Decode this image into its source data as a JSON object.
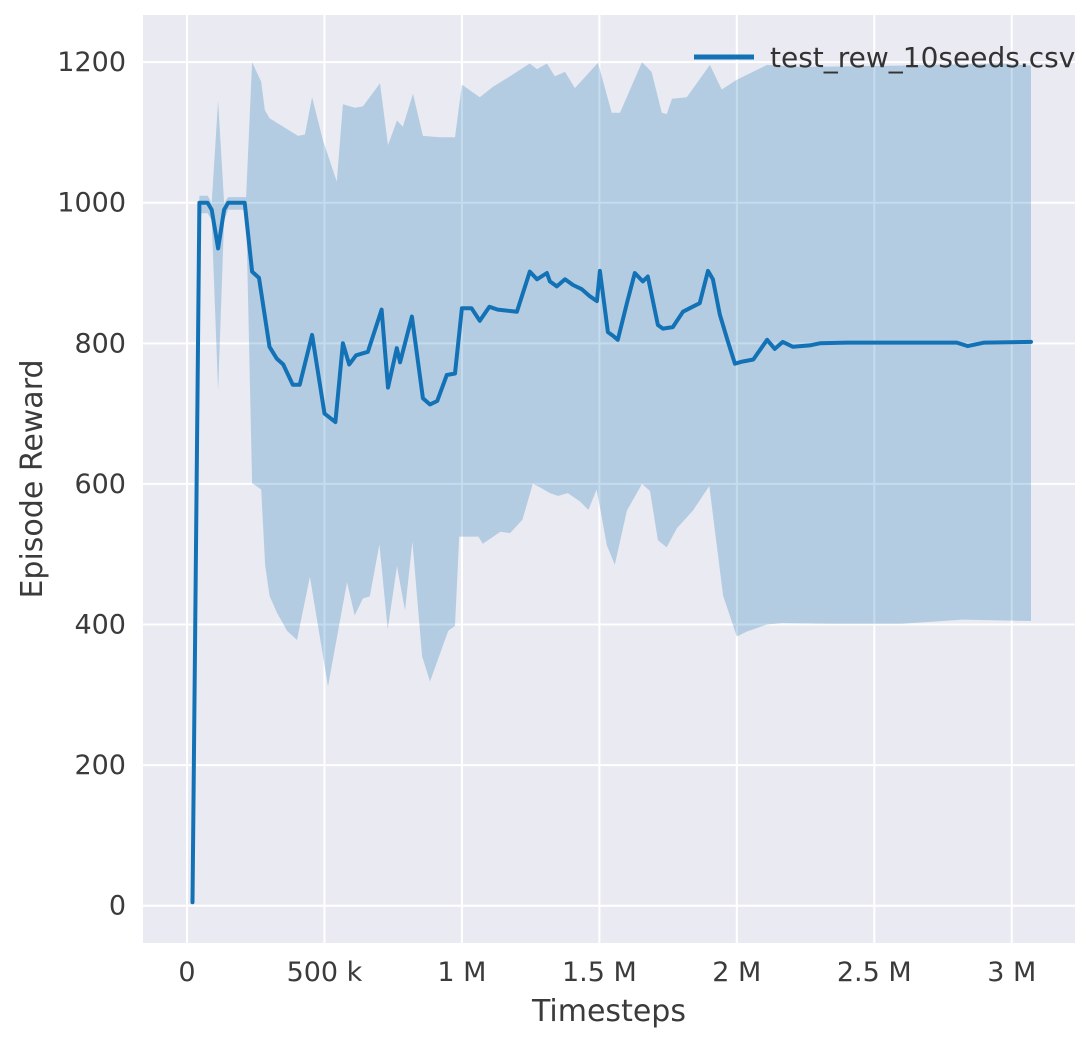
{
  "chart_data": {
    "type": "line",
    "title": "",
    "xlabel": "Timesteps",
    "ylabel": "Episode Reward",
    "grid": true,
    "legend": {
      "position": "upper-right",
      "entries": [
        {
          "label": "test_rew_10seeds.csv",
          "color": "#1372b5"
        }
      ]
    },
    "plot_background_color": "#eaeaf2",
    "grid_color": "#ffffff",
    "text_color": "#3b3b3b",
    "xlim": [
      -160000,
      3230000
    ],
    "ylim": [
      -53,
      1267
    ],
    "x_ticks": {
      "values": [
        0,
        500000,
        1000000,
        1500000,
        2000000,
        2500000,
        3000000
      ],
      "labels": [
        "0",
        "500 k",
        "1 M",
        "1.5 M",
        "2 M",
        "2.5 M",
        "3 M"
      ]
    },
    "y_ticks": {
      "values": [
        0,
        200,
        400,
        600,
        800,
        1000,
        1200
      ],
      "labels": [
        "0",
        "200",
        "400",
        "600",
        "800",
        "1000",
        "1200"
      ]
    },
    "series": [
      {
        "name": "test_rew_10seeds.csv",
        "color": "#1372b5",
        "line_width": 4,
        "band_opacity": 0.25,
        "mean": [
          [
            20000,
            5
          ],
          [
            45000,
            1000
          ],
          [
            75000,
            1000
          ],
          [
            90000,
            990
          ],
          [
            113000,
            935
          ],
          [
            135000,
            990
          ],
          [
            150000,
            1000
          ],
          [
            210000,
            1000
          ],
          [
            237000,
            902
          ],
          [
            262000,
            893
          ],
          [
            300000,
            795
          ],
          [
            327000,
            778
          ],
          [
            350000,
            770
          ],
          [
            385000,
            741
          ],
          [
            410000,
            741
          ],
          [
            455000,
            812
          ],
          [
            500000,
            700
          ],
          [
            540000,
            688
          ],
          [
            567000,
            800
          ],
          [
            590000,
            770
          ],
          [
            615000,
            783
          ],
          [
            658000,
            788
          ],
          [
            708000,
            848
          ],
          [
            731000,
            737
          ],
          [
            763000,
            793
          ],
          [
            775000,
            773
          ],
          [
            818000,
            838
          ],
          [
            858000,
            722
          ],
          [
            884000,
            713
          ],
          [
            910000,
            718
          ],
          [
            945000,
            755
          ],
          [
            975000,
            757
          ],
          [
            1000000,
            850
          ],
          [
            1035000,
            850
          ],
          [
            1065000,
            832
          ],
          [
            1100000,
            852
          ],
          [
            1130000,
            848
          ],
          [
            1200000,
            845
          ],
          [
            1247000,
            902
          ],
          [
            1273000,
            891
          ],
          [
            1309000,
            900
          ],
          [
            1320000,
            888
          ],
          [
            1345000,
            881
          ],
          [
            1375000,
            891
          ],
          [
            1404000,
            883
          ],
          [
            1436000,
            877
          ],
          [
            1465000,
            867
          ],
          [
            1491000,
            860
          ],
          [
            1502000,
            903
          ],
          [
            1531000,
            816
          ],
          [
            1549000,
            811
          ],
          [
            1567000,
            805
          ],
          [
            1600000,
            857
          ],
          [
            1629000,
            900
          ],
          [
            1658000,
            888
          ],
          [
            1676000,
            895
          ],
          [
            1713000,
            826
          ],
          [
            1731000,
            821
          ],
          [
            1767000,
            823
          ],
          [
            1804000,
            845
          ],
          [
            1829000,
            850
          ],
          [
            1865000,
            857
          ],
          [
            1895000,
            903
          ],
          [
            1913000,
            891
          ],
          [
            1938000,
            841
          ],
          [
            1967000,
            803
          ],
          [
            1993000,
            771
          ],
          [
            2020000,
            774
          ],
          [
            2060000,
            777
          ],
          [
            2110000,
            805
          ],
          [
            2138000,
            792
          ],
          [
            2167000,
            802
          ],
          [
            2204000,
            795
          ],
          [
            2265000,
            797
          ],
          [
            2302000,
            800
          ],
          [
            2400000,
            801
          ],
          [
            2600000,
            801
          ],
          [
            2800000,
            801
          ],
          [
            2840000,
            796
          ],
          [
            2900000,
            801
          ],
          [
            3070000,
            802
          ]
        ],
        "band_upper": [
          [
            20000,
            8
          ],
          [
            45000,
            1010
          ],
          [
            75000,
            1010
          ],
          [
            90000,
            1000
          ],
          [
            113000,
            1145
          ],
          [
            135000,
            1000
          ],
          [
            150000,
            1008
          ],
          [
            215000,
            1008
          ],
          [
            237000,
            1200
          ],
          [
            270000,
            1172
          ],
          [
            283000,
            1132
          ],
          [
            300000,
            1120
          ],
          [
            404000,
            1095
          ],
          [
            429000,
            1097
          ],
          [
            455000,
            1150
          ],
          [
            495000,
            1088
          ],
          [
            545000,
            1030
          ],
          [
            567000,
            1140
          ],
          [
            611000,
            1135
          ],
          [
            640000,
            1137
          ],
          [
            702000,
            1170
          ],
          [
            731000,
            1082
          ],
          [
            764000,
            1117
          ],
          [
            785000,
            1108
          ],
          [
            822000,
            1155
          ],
          [
            858000,
            1095
          ],
          [
            920000,
            1093
          ],
          [
            975000,
            1093
          ],
          [
            1000000,
            1168
          ],
          [
            1047000,
            1155
          ],
          [
            1065000,
            1150
          ],
          [
            1113000,
            1165
          ],
          [
            1175000,
            1180
          ],
          [
            1247000,
            1198
          ],
          [
            1273000,
            1190
          ],
          [
            1309000,
            1198
          ],
          [
            1338000,
            1180
          ],
          [
            1375000,
            1186
          ],
          [
            1411000,
            1163
          ],
          [
            1495000,
            1199
          ],
          [
            1545000,
            1128
          ],
          [
            1575000,
            1128
          ],
          [
            1655000,
            1200
          ],
          [
            1690000,
            1186
          ],
          [
            1727000,
            1128
          ],
          [
            1745000,
            1126
          ],
          [
            1764000,
            1148
          ],
          [
            1818000,
            1150
          ],
          [
            1902000,
            1196
          ],
          [
            1945000,
            1161
          ],
          [
            2000000,
            1175
          ],
          [
            2110000,
            1196
          ],
          [
            2230000,
            1193
          ],
          [
            2593000,
            1195
          ],
          [
            2956000,
            1198
          ],
          [
            3070000,
            1195
          ]
        ],
        "band_lower": [
          [
            20000,
            3
          ],
          [
            45000,
            985
          ],
          [
            75000,
            985
          ],
          [
            90000,
            975
          ],
          [
            113000,
            733
          ],
          [
            135000,
            975
          ],
          [
            150000,
            990
          ],
          [
            215000,
            990
          ],
          [
            237000,
            601
          ],
          [
            270000,
            592
          ],
          [
            284000,
            485
          ],
          [
            300000,
            441
          ],
          [
            327000,
            417
          ],
          [
            364000,
            391
          ],
          [
            400000,
            378
          ],
          [
            447000,
            468
          ],
          [
            513000,
            312
          ],
          [
            582000,
            460
          ],
          [
            610000,
            413
          ],
          [
            640000,
            437
          ],
          [
            665000,
            440
          ],
          [
            700000,
            514
          ],
          [
            730000,
            393
          ],
          [
            764000,
            483
          ],
          [
            793000,
            420
          ],
          [
            820000,
            518
          ],
          [
            855000,
            355
          ],
          [
            884000,
            319
          ],
          [
            950000,
            391
          ],
          [
            975000,
            398
          ],
          [
            990000,
            525
          ],
          [
            1060000,
            525
          ],
          [
            1076000,
            515
          ],
          [
            1140000,
            532
          ],
          [
            1175000,
            530
          ],
          [
            1220000,
            549
          ],
          [
            1258000,
            600
          ],
          [
            1284000,
            595
          ],
          [
            1320000,
            587
          ],
          [
            1350000,
            583
          ],
          [
            1385000,
            587
          ],
          [
            1430000,
            575
          ],
          [
            1460000,
            563
          ],
          [
            1490000,
            592
          ],
          [
            1527000,
            513
          ],
          [
            1556000,
            485
          ],
          [
            1600000,
            562
          ],
          [
            1655000,
            600
          ],
          [
            1684000,
            590
          ],
          [
            1713000,
            520
          ],
          [
            1745000,
            510
          ],
          [
            1782000,
            537
          ],
          [
            1840000,
            562
          ],
          [
            1900000,
            597
          ],
          [
            1950000,
            441
          ],
          [
            2000000,
            383
          ],
          [
            2036000,
            390
          ],
          [
            2110000,
            400
          ],
          [
            2164000,
            402
          ],
          [
            2330000,
            401
          ],
          [
            2600000,
            401
          ],
          [
            2820000,
            407
          ],
          [
            3070000,
            405
          ]
        ]
      }
    ]
  }
}
